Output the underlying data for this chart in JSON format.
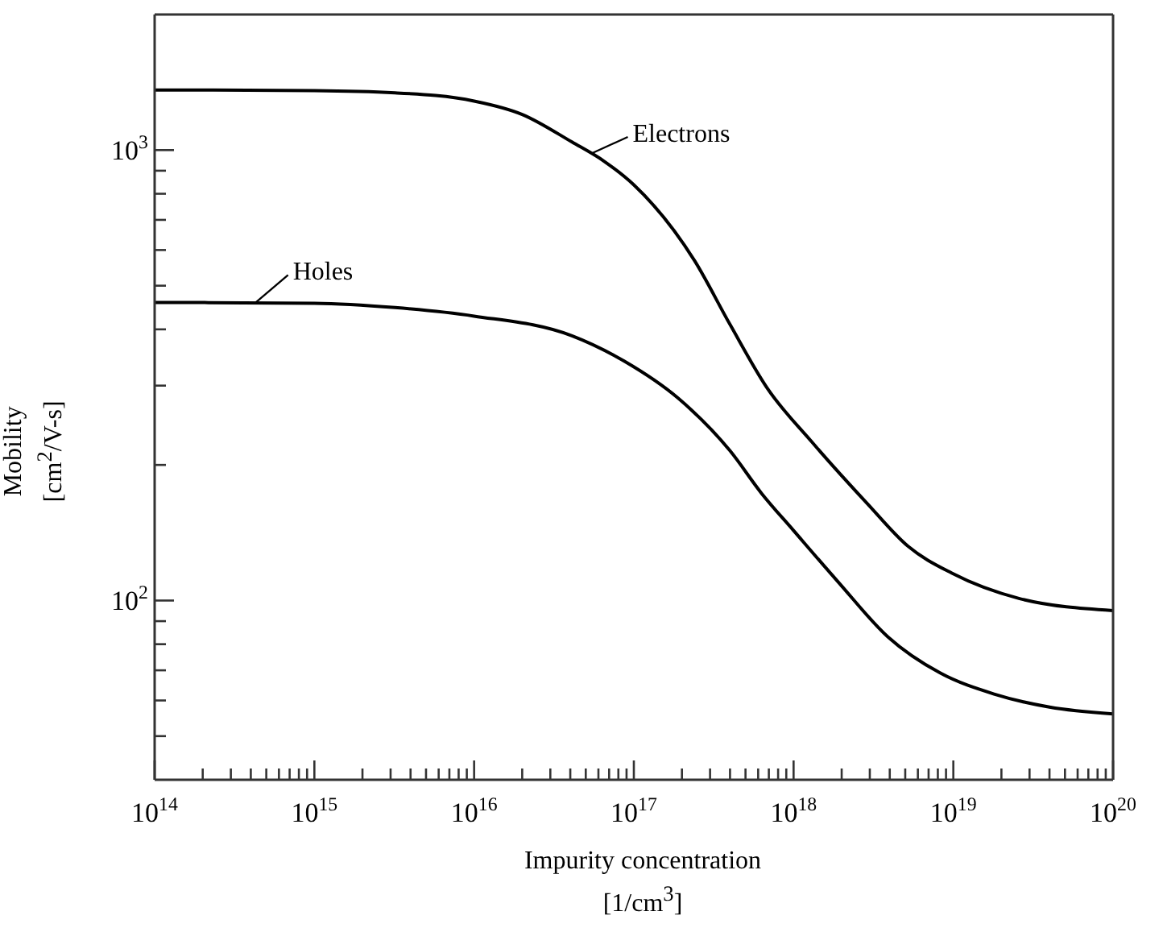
{
  "chart_data": {
    "type": "line",
    "xlabel": "Impurity concentration [1/cm$^{3}$]",
    "ylabel": "Mobility [cm$^{2}$/V-s]",
    "log": "xy",
    "marker": "none",
    "line_style": "solid",
    "xlim": [
      100000000000000.0,
      1e+20
    ],
    "ylim": [
      40,
      2000
    ],
    "xticks": [
      {
        "value": 100000000000000.0,
        "label": "10$^{14}$"
      },
      {
        "value": 200000000000000.0,
        "label": null
      },
      {
        "value": 300000000000000.0,
        "label": null
      },
      {
        "value": 400000000000000.0,
        "label": null
      },
      {
        "value": 500000000000000.0,
        "label": null
      },
      {
        "value": 600000000000000.0,
        "label": null
      },
      {
        "value": 700000000000000.0,
        "label": null
      },
      {
        "value": 800000000000000.0,
        "label": null
      },
      {
        "value": 900000000000000.0,
        "label": null
      },
      {
        "value": 1000000000000000.0,
        "label": "10$^{15}$"
      },
      {
        "value": 2000000000000000.0,
        "label": null
      },
      {
        "value": 3000000000000000.0,
        "label": null
      },
      {
        "value": 4000000000000000.0,
        "label": null
      },
      {
        "value": 5000000000000000.0,
        "label": null
      },
      {
        "value": 6000000000000000.0,
        "label": null
      },
      {
        "value": 7000000000000000.0,
        "label": null
      },
      {
        "value": 8000000000000000.0,
        "label": null
      },
      {
        "value": 9000000000000000.0,
        "label": null
      },
      {
        "value": 1e+16,
        "label": "10$^{16}$"
      },
      {
        "value": 2e+16,
        "label": null
      },
      {
        "value": 3e+16,
        "label": null
      },
      {
        "value": 4e+16,
        "label": null
      },
      {
        "value": 5e+16,
        "label": null
      },
      {
        "value": 6e+16,
        "label": null
      },
      {
        "value": 7e+16,
        "label": null
      },
      {
        "value": 8e+16,
        "label": null
      },
      {
        "value": 9e+16,
        "label": null
      },
      {
        "value": 1e+17,
        "label": "10$^{17}$"
      },
      {
        "value": 2e+17,
        "label": null
      },
      {
        "value": 3e+17,
        "label": null
      },
      {
        "value": 4e+17,
        "label": null
      },
      {
        "value": 5e+17,
        "label": null
      },
      {
        "value": 6e+17,
        "label": null
      },
      {
        "value": 7e+17,
        "label": null
      },
      {
        "value": 8e+17,
        "label": null
      },
      {
        "value": 9e+17,
        "label": null
      },
      {
        "value": 1e+18,
        "label": "10$^{18}$"
      },
      {
        "value": 2e+18,
        "label": null
      },
      {
        "value": 3e+18,
        "label": null
      },
      {
        "value": 4e+18,
        "label": null
      },
      {
        "value": 5e+18,
        "label": null
      },
      {
        "value": 6e+18,
        "label": null
      },
      {
        "value": 7e+18,
        "label": null
      },
      {
        "value": 8e+18,
        "label": null
      },
      {
        "value": 9e+18,
        "label": null
      },
      {
        "value": 1e+19,
        "label": "10$^{19}$"
      },
      {
        "value": 2e+19,
        "label": null
      },
      {
        "value": 3e+19,
        "label": null
      },
      {
        "value": 4e+19,
        "label": null
      },
      {
        "value": 5e+19,
        "label": null
      },
      {
        "value": 6e+19,
        "label": null
      },
      {
        "value": 7e+19,
        "label": null
      },
      {
        "value": 8e+19,
        "label": null
      },
      {
        "value": 9e+19,
        "label": null
      },
      {
        "value": 1e+20,
        "label": "10$^{20}$"
      }
    ],
    "yticks": [
      {
        "value": 50,
        "label": null
      },
      {
        "value": 60,
        "label": null
      },
      {
        "value": 70,
        "label": null
      },
      {
        "value": 80,
        "label": null
      },
      {
        "value": 90,
        "label": null
      },
      {
        "value": 100,
        "label": "10$^{2}$"
      },
      {
        "value": 200,
        "label": null
      },
      {
        "value": 300,
        "label": null
      },
      {
        "value": 400,
        "label": null
      },
      {
        "value": 500,
        "label": null
      },
      {
        "value": 600,
        "label": null
      },
      {
        "value": 700,
        "label": null
      },
      {
        "value": 800,
        "label": null
      },
      {
        "value": 900,
        "label": null
      },
      {
        "value": 1000,
        "label": "10$^{3}$"
      }
    ],
    "annotations": [
      {
        "text": "Electrons",
        "x": 5.5e+16,
        "y": 985
      },
      {
        "text": "Holes",
        "x": 430000000000000.0,
        "y": 459
      }
    ],
    "series": [
      {
        "color": "#000000",
        "x": [
          100000000000000.0,
          1000000000000000.0,
          3200000000000000.0,
          1e+16,
          2e+16,
          4.1e+16,
          6.5e+16,
          1e+17,
          2.4e+17,
          4e+17,
          6.8e+17,
          1.3e+18,
          2.9e+18,
          5.2e+18,
          9.8e+18,
          2.6e+19,
          1e+20
        ],
        "values": [
          1360,
          1355,
          1340,
          1285,
          1200,
          1042,
          945,
          837,
          568,
          410,
          297,
          225,
          164,
          132,
          115,
          101,
          95
        ]
      },
      {
        "color": "#000000",
        "x": [
          100000000000000.0,
          1000000000000000.0,
          3200000000000000.0,
          1e+16,
          4.1e+16,
          8.7e+16,
          1.9e+17,
          4e+17,
          6.3e+17,
          1e+18,
          1.9e+18,
          3.9e+18,
          8.3e+18,
          1.8e+19,
          4e+19,
          1e+20
        ],
        "values": [
          459,
          457,
          447,
          428,
          387,
          340,
          281,
          215,
          173,
          143,
          110,
          83,
          69,
          62,
          58,
          56
        ]
      }
    ]
  }
}
